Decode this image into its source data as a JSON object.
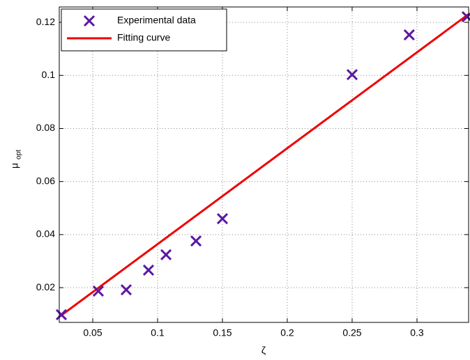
{
  "chart_data": {
    "type": "scatter",
    "xlabel": "ζ",
    "ylabel": "μ",
    "ylabel_sub": "opt",
    "xlim": [
      0.0242,
      0.3398
    ],
    "ylim": [
      0.0069,
      0.1258
    ],
    "xticks": [
      0.05,
      0.1,
      0.15,
      0.2,
      0.25,
      0.3
    ],
    "yticks": [
      0.02,
      0.04,
      0.06,
      0.08,
      0.1,
      0.12
    ],
    "grid": true,
    "legend": "upper-left",
    "series": [
      {
        "name": "Experimental data",
        "color": "#5b17a3",
        "mode": "markers",
        "x": [
          0.0258,
          0.0543,
          0.0758,
          0.093,
          0.1065,
          0.1296,
          0.15,
          0.25,
          0.294,
          0.3387
        ],
        "values": [
          0.0098,
          0.0187,
          0.0192,
          0.0266,
          0.0324,
          0.0376,
          0.046,
          0.1003,
          0.1153,
          0.1221
        ]
      },
      {
        "name": "Fitting curve",
        "color": "#ee0000",
        "mode": "line",
        "x": [
          0.0242,
          0.3398
        ],
        "values": [
          0.009,
          0.1231
        ]
      }
    ]
  }
}
